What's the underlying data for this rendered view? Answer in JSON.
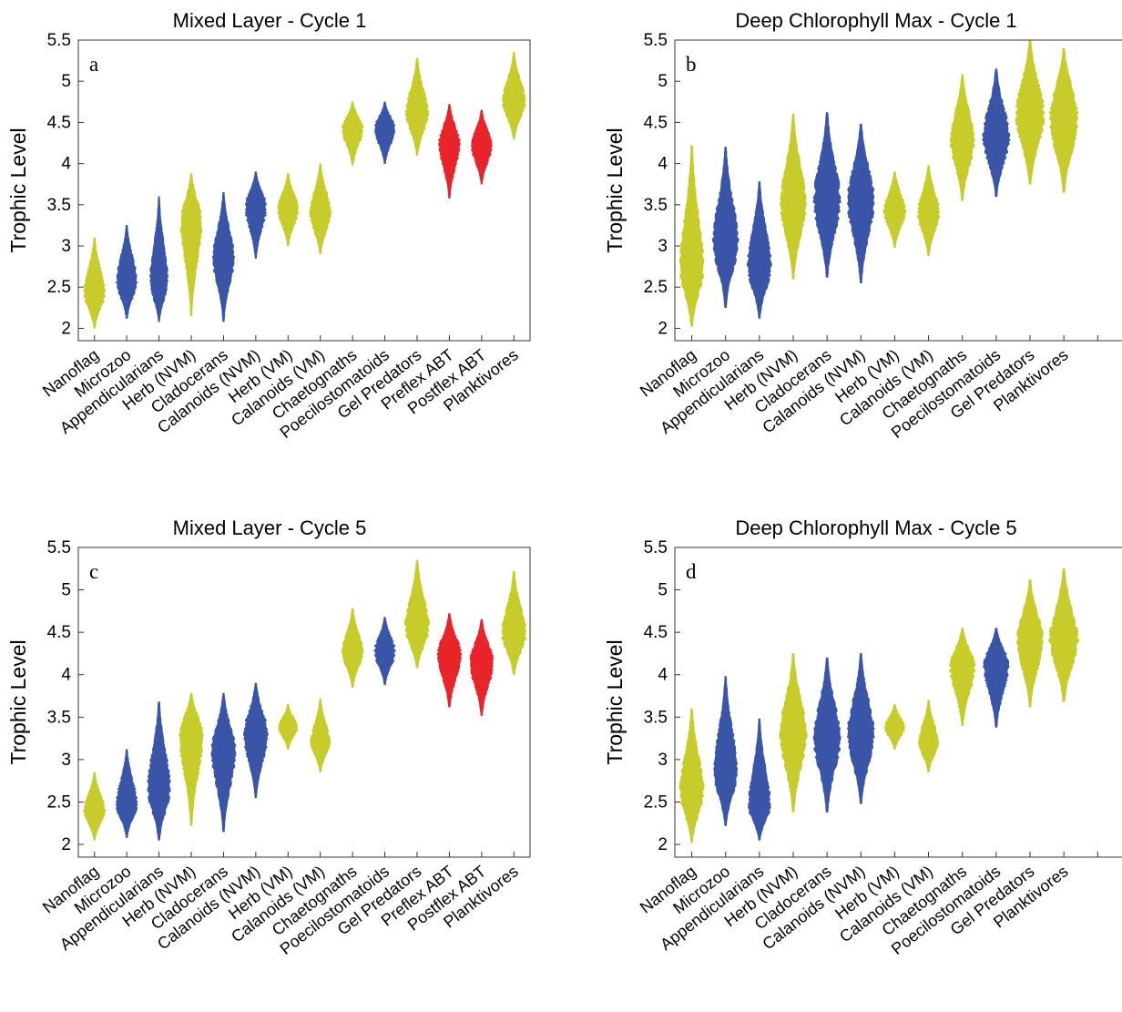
{
  "colors": {
    "yellow": "#C8CC2A",
    "blue": "#3A55A8",
    "red": "#E8242A",
    "axis": "#333333"
  },
  "chart_data": [
    {
      "type": "violin",
      "title": "Mixed Layer - Cycle 1",
      "panel_label": "a",
      "ylabel": "Trophic Level",
      "ylim": [
        1.85,
        5.5
      ],
      "yticks": [
        "5.5",
        "5",
        "4.5",
        "4",
        "3.5",
        "3",
        "2.5",
        "2"
      ],
      "series": [
        {
          "category": "Nanoflag",
          "color": "yellow",
          "median": 2.43,
          "min": 2.0,
          "max": 3.1,
          "width": 0.35
        },
        {
          "category": "Microzoo",
          "color": "blue",
          "median": 2.57,
          "min": 2.12,
          "max": 3.25,
          "width": 0.35
        },
        {
          "category": "Appendicularians",
          "color": "blue",
          "median": 2.55,
          "min": 2.08,
          "max": 3.6,
          "width": 0.3
        },
        {
          "category": "Herb (NVM)",
          "color": "yellow",
          "median": 3.3,
          "min": 2.15,
          "max": 3.88,
          "width": 0.35
        },
        {
          "category": "Cladocerans",
          "color": "blue",
          "median": 2.85,
          "min": 2.08,
          "max": 3.65,
          "width": 0.35
        },
        {
          "category": "Calanoids (NVM)",
          "color": "blue",
          "median": 3.47,
          "min": 2.85,
          "max": 3.9,
          "width": 0.35
        },
        {
          "category": "Herb (VM)",
          "color": "yellow",
          "median": 3.45,
          "min": 3.0,
          "max": 3.88,
          "width": 0.35
        },
        {
          "category": "Calanoids (VM)",
          "color": "yellow",
          "median": 3.4,
          "min": 2.9,
          "max": 4.0,
          "width": 0.35
        },
        {
          "category": "Chaetognaths",
          "color": "yellow",
          "median": 4.42,
          "min": 3.98,
          "max": 4.75,
          "width": 0.35
        },
        {
          "category": "Poecilostomatoids",
          "color": "blue",
          "median": 4.42,
          "min": 4.0,
          "max": 4.75,
          "width": 0.35
        },
        {
          "category": "Gel Predators",
          "color": "yellow",
          "median": 4.62,
          "min": 4.1,
          "max": 5.28,
          "width": 0.38
        },
        {
          "category": "Preflex ABT",
          "color": "red",
          "median": 4.25,
          "min": 3.58,
          "max": 4.72,
          "width": 0.35
        },
        {
          "category": "Postflex ABT",
          "color": "red",
          "median": 4.22,
          "min": 3.75,
          "max": 4.65,
          "width": 0.35
        },
        {
          "category": "Planktivores",
          "color": "yellow",
          "median": 4.75,
          "min": 4.3,
          "max": 5.35,
          "width": 0.38
        }
      ]
    },
    {
      "type": "violin",
      "title": "Deep Chlorophyll Max - Cycle 1",
      "panel_label": "b",
      "ylabel": "Trophic Level",
      "ylim": [
        1.85,
        5.5
      ],
      "yticks": [
        "5.5",
        "5",
        "4.5",
        "4",
        "3.5",
        "3",
        "2.5",
        "2"
      ],
      "series": [
        {
          "category": "Nanoflag",
          "color": "yellow",
          "median": 2.72,
          "min": 2.02,
          "max": 4.22,
          "width": 0.38
        },
        {
          "category": "Microzoo",
          "color": "blue",
          "median": 3.05,
          "min": 2.25,
          "max": 4.2,
          "width": 0.4
        },
        {
          "category": "Appendicularians",
          "color": "blue",
          "median": 2.75,
          "min": 2.12,
          "max": 3.78,
          "width": 0.38
        },
        {
          "category": "Herb (NVM)",
          "color": "yellow",
          "median": 3.5,
          "min": 2.6,
          "max": 4.6,
          "width": 0.4
        },
        {
          "category": "Cladocerans",
          "color": "blue",
          "median": 3.55,
          "min": 2.62,
          "max": 4.62,
          "width": 0.42
        },
        {
          "category": "Calanoids (NVM)",
          "color": "blue",
          "median": 3.55,
          "min": 2.55,
          "max": 4.48,
          "width": 0.42
        },
        {
          "category": "Herb (VM)",
          "color": "yellow",
          "median": 3.43,
          "min": 2.98,
          "max": 3.9,
          "width": 0.35
        },
        {
          "category": "Calanoids (VM)",
          "color": "yellow",
          "median": 3.4,
          "min": 2.88,
          "max": 3.98,
          "width": 0.35
        },
        {
          "category": "Chaetognaths",
          "color": "yellow",
          "median": 4.28,
          "min": 3.55,
          "max": 5.08,
          "width": 0.38
        },
        {
          "category": "Poecilostomatoids",
          "color": "blue",
          "median": 4.32,
          "min": 3.6,
          "max": 5.15,
          "width": 0.42
        },
        {
          "category": "Gel Predators",
          "color": "yellow",
          "median": 4.6,
          "min": 3.75,
          "max": 5.5,
          "width": 0.45
        },
        {
          "category": "Planktivores",
          "color": "yellow",
          "median": 4.55,
          "min": 3.65,
          "max": 5.4,
          "width": 0.45
        }
      ]
    },
    {
      "type": "violin",
      "title": "Mixed Layer - Cycle 5",
      "panel_label": "c",
      "ylabel": "Trophic Level",
      "ylim": [
        1.85,
        5.5
      ],
      "yticks": [
        "5.5",
        "5",
        "4.5",
        "4",
        "3.5",
        "3",
        "2.5",
        "2"
      ],
      "series": [
        {
          "category": "Nanoflag",
          "color": "yellow",
          "median": 2.4,
          "min": 2.05,
          "max": 2.85,
          "width": 0.35
        },
        {
          "category": "Microzoo",
          "color": "blue",
          "median": 2.48,
          "min": 2.08,
          "max": 3.12,
          "width": 0.35
        },
        {
          "category": "Appendicularians",
          "color": "blue",
          "median": 2.65,
          "min": 2.05,
          "max": 3.68,
          "width": 0.38
        },
        {
          "category": "Herb (NVM)",
          "color": "yellow",
          "median": 3.3,
          "min": 2.22,
          "max": 3.78,
          "width": 0.4
        },
        {
          "category": "Cladocerans",
          "color": "blue",
          "median": 3.1,
          "min": 2.15,
          "max": 3.78,
          "width": 0.4
        },
        {
          "category": "Calanoids (NVM)",
          "color": "blue",
          "median": 3.3,
          "min": 2.55,
          "max": 3.9,
          "width": 0.4
        },
        {
          "category": "Herb (VM)",
          "color": "yellow",
          "median": 3.38,
          "min": 3.12,
          "max": 3.65,
          "width": 0.32
        },
        {
          "category": "Calanoids (VM)",
          "color": "yellow",
          "median": 3.2,
          "min": 2.85,
          "max": 3.72,
          "width": 0.32
        },
        {
          "category": "Chaetognaths",
          "color": "yellow",
          "median": 4.27,
          "min": 3.85,
          "max": 4.78,
          "width": 0.35
        },
        {
          "category": "Poecilostomatoids",
          "color": "blue",
          "median": 4.27,
          "min": 3.88,
          "max": 4.68,
          "width": 0.35
        },
        {
          "category": "Gel Predators",
          "color": "yellow",
          "median": 4.55,
          "min": 4.08,
          "max": 5.35,
          "width": 0.4
        },
        {
          "category": "Preflex ABT",
          "color": "red",
          "median": 4.22,
          "min": 3.62,
          "max": 4.72,
          "width": 0.4
        },
        {
          "category": "Postflex ABT",
          "color": "red",
          "median": 4.15,
          "min": 3.52,
          "max": 4.65,
          "width": 0.4
        },
        {
          "category": "Planktivores",
          "color": "yellow",
          "median": 4.48,
          "min": 4.0,
          "max": 5.22,
          "width": 0.4
        }
      ]
    },
    {
      "type": "violin",
      "title": "Deep Chlorophyll Max - Cycle 5",
      "panel_label": "d",
      "ylabel": "Trophic Level",
      "ylim": [
        1.85,
        5.5
      ],
      "yticks": [
        "5.5",
        "5",
        "4.5",
        "4",
        "3.5",
        "3",
        "2.5",
        "2"
      ],
      "series": [
        {
          "category": "Nanoflag",
          "color": "yellow",
          "median": 2.62,
          "min": 2.02,
          "max": 3.6,
          "width": 0.38
        },
        {
          "category": "Microzoo",
          "color": "blue",
          "median": 2.85,
          "min": 2.22,
          "max": 3.98,
          "width": 0.38
        },
        {
          "category": "Appendicularians",
          "color": "blue",
          "median": 2.45,
          "min": 2.05,
          "max": 3.48,
          "width": 0.35
        },
        {
          "category": "Herb (NVM)",
          "color": "yellow",
          "median": 3.3,
          "min": 2.38,
          "max": 4.25,
          "width": 0.42
        },
        {
          "category": "Cladocerans",
          "color": "blue",
          "median": 3.25,
          "min": 2.38,
          "max": 4.2,
          "width": 0.42
        },
        {
          "category": "Calanoids (NVM)",
          "color": "blue",
          "median": 3.28,
          "min": 2.48,
          "max": 4.25,
          "width": 0.42
        },
        {
          "category": "Herb (VM)",
          "color": "yellow",
          "median": 3.38,
          "min": 3.12,
          "max": 3.65,
          "width": 0.32
        },
        {
          "category": "Calanoids (VM)",
          "color": "yellow",
          "median": 3.2,
          "min": 2.85,
          "max": 3.7,
          "width": 0.32
        },
        {
          "category": "Chaetognaths",
          "color": "yellow",
          "median": 4.1,
          "min": 3.4,
          "max": 4.55,
          "width": 0.4
        },
        {
          "category": "Poecilostomatoids",
          "color": "blue",
          "median": 4.12,
          "min": 3.38,
          "max": 4.55,
          "width": 0.4
        },
        {
          "category": "Gel Predators",
          "color": "yellow",
          "median": 4.4,
          "min": 3.62,
          "max": 5.12,
          "width": 0.42
        },
        {
          "category": "Planktivores",
          "color": "yellow",
          "median": 4.4,
          "min": 3.68,
          "max": 5.25,
          "width": 0.45
        }
      ]
    }
  ]
}
